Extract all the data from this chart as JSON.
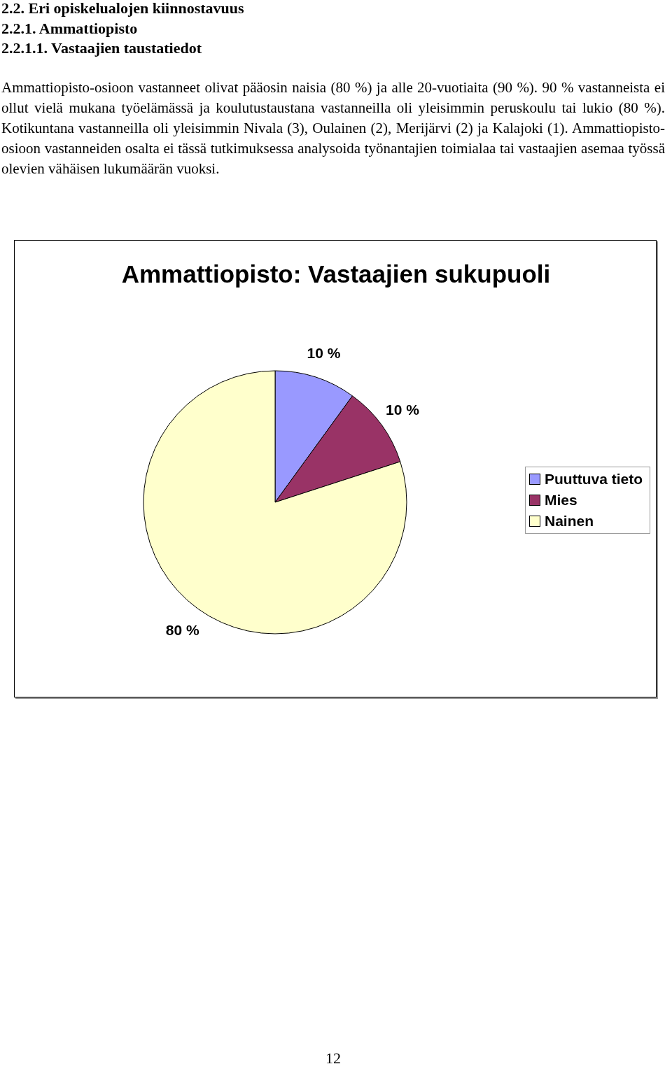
{
  "chart_data": {
    "type": "pie",
    "title": "Ammattiopisto: Vastaajien sukupuoli",
    "categories": [
      "Puuttuva tieto",
      "Mies",
      "Nainen"
    ],
    "values": [
      10,
      10,
      80
    ],
    "colors": [
      "#9999ff",
      "#993366",
      "#ffffcc"
    ],
    "value_labels": [
      "10 %",
      "10 %",
      "80 %"
    ],
    "legend": "right",
    "annotations": [
      "2.2. Eri opiskelualojen kiinnostavuus",
      "2.2.1. Ammattiopisto",
      "2.2.1.1. Vastaajien taustatiedot",
      "Ammattiopisto-osioon vastanneet olivat pääosin naisia (80 %) ja alle 20-vuotiaita (90 %). 90 % vastanneista ei ollut vielä mukana työelämässä ja koulutustaustana vastanneilla oli yleisimmin peruskoulu tai lukio (80 %). Kotikuntana vastanneilla oli yleisimmin Nivala (3), Oulainen (2), Merijärvi (2) ja Kalajoki (1). Ammattiopisto-osioon vastanneiden osalta ei tässä tutkimuksessa analysoida työnantajien toimialaa tai vastaajien asemaa työssä olevien vähäisen lukumäärän vuoksi.",
      "12"
    ]
  }
}
